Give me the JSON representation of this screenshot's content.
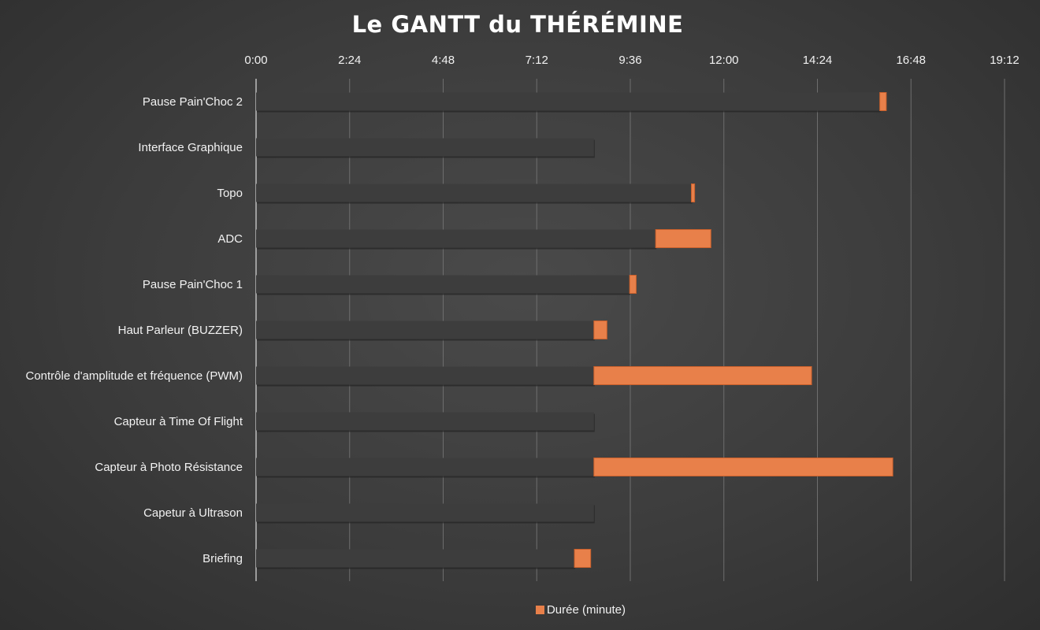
{
  "chart_data": {
    "type": "bar",
    "orientation": "horizontal-stacked",
    "title": "Le GANTT du THÉRÉMINE",
    "x_ticks": [
      "0:00",
      "2:24",
      "4:48",
      "7:12",
      "9:36",
      "12:00",
      "14:24",
      "16:48",
      "19:12"
    ],
    "xlim_minutes": [
      0,
      1152
    ],
    "categories": [
      "Pause Pain'Choc 2",
      "Interface Graphique",
      "Topo",
      "ADC",
      "Pause Pain'Choc 1",
      "Haut Parleur (BUZZER)",
      "Contrôle d'amplitude et fréquence (PWM)",
      "Capteur à Time Of Flight",
      "Capteur à Photo Résistance",
      "Capetur à Ultrason",
      "Briefing"
    ],
    "series": [
      {
        "role": "start",
        "visible_legend": false,
        "color": "#3d3d3d",
        "values": [
          "16:00",
          "8:40",
          "11:10",
          "10:15",
          "9:35",
          "8:40",
          "8:40",
          "8:40",
          "8:40",
          "8:40",
          "8:10"
        ]
      },
      {
        "name": "Durée (minute)",
        "role": "duration",
        "color": "#e8804a",
        "values": [
          "0:10",
          "0:00",
          "0:05",
          "1:25",
          "0:10",
          "0:20",
          "5:35",
          "0:00",
          "7:40",
          "0:00",
          "0:25"
        ]
      }
    ],
    "legend_position": "bottom",
    "grid": true,
    "colors": {
      "bar": "#e8804a",
      "bar_stroke": "#c9602c",
      "grid": "#6e6e6e",
      "text": "#f2f2f2",
      "background": "#404040"
    }
  }
}
